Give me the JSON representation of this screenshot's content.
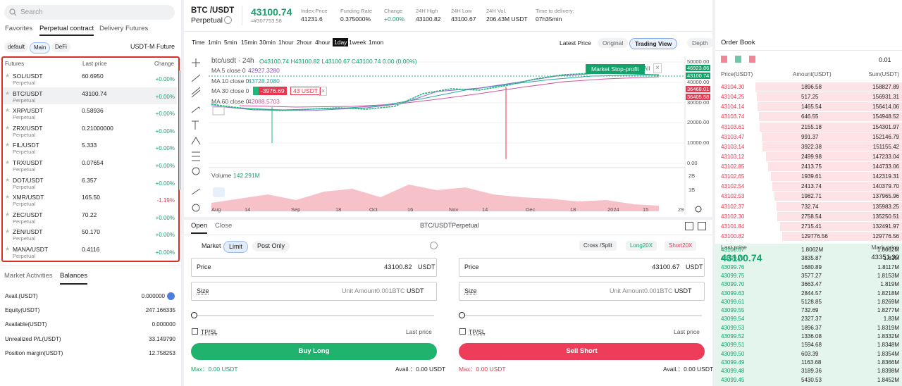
{
  "sidebar": {
    "search": "Search",
    "tabs": [
      "Favorites",
      "Perpetual contract",
      "Delivery Futures"
    ],
    "filters": [
      "default",
      "Main",
      "DeFi"
    ],
    "market": "USDT-M Future",
    "table": {
      "headers": [
        "Futures",
        "Last price",
        "Change"
      ],
      "rows": [
        {
          "symbol": "SOL/USDT",
          "type": "Perpetual",
          "price": "60.6950",
          "change": "+0.00%"
        },
        {
          "symbol": "BTC/USDT",
          "type": "Perpetual",
          "price": "43100.74",
          "change": "+0.00%"
        },
        {
          "symbol": "XRP/USDT",
          "type": "Perpetual",
          "price": "0.58936",
          "change": "+0.00%"
        },
        {
          "symbol": "ZRX/USDT",
          "type": "Perpetual",
          "price": "0.21000000",
          "change": "+0.00%"
        },
        {
          "symbol": "FIL/USDT",
          "type": "Perpetual",
          "price": "5.333",
          "change": "+0.00%"
        },
        {
          "symbol": "TRX/USDT",
          "type": "Perpetual",
          "price": "0.07654",
          "change": "+0.00%"
        },
        {
          "symbol": "DOT/USDT",
          "type": "Perpetual",
          "price": "6.357",
          "change": "+0.00%"
        },
        {
          "symbol": "XMR/USDT",
          "type": "Perpetual",
          "price": "165.50",
          "change": "-1.19%"
        },
        {
          "symbol": "ZEC/USDT",
          "type": "Perpetual",
          "price": "70.22",
          "change": "+0.00%"
        },
        {
          "symbol": "ZEN/USDT",
          "type": "Perpetual",
          "price": "50.170",
          "change": "+0.00%"
        },
        {
          "symbol": "MANA/USDT",
          "type": "Perpetual",
          "price": "0.4116",
          "change": "+0.00%"
        }
      ]
    },
    "bottom_tabs": [
      "Market Activities",
      "Balances"
    ],
    "balances": [
      [
        "Avail.(USDT)",
        "0.000000"
      ],
      [
        "Equity(USDT)",
        "247.166335"
      ],
      [
        "Available(USDT)",
        "0.000000"
      ],
      [
        "Unrealized P/L(USDT)",
        "33.149790"
      ],
      [
        "Position margin(USDT)",
        "12.758253"
      ]
    ]
  },
  "header": {
    "pair": "BTC /USDT",
    "contract": "Perpetual",
    "price": "43100.74",
    "cny": "≈¥307753.58",
    "stats": [
      {
        "label": "Index Price",
        "value": "41231.6"
      },
      {
        "label": "Funding Rate",
        "value": "0.375000%"
      },
      {
        "label": "Change",
        "value": "+0.00%"
      },
      {
        "label": "24H High",
        "value": "43100.82"
      },
      {
        "label": "24H Low",
        "value": "43100.67"
      },
      {
        "label": "24H Vol.",
        "value": "206.43M USDT"
      },
      {
        "label": "Time to delivery:",
        "value": "07h35min"
      }
    ]
  },
  "toolbar": {
    "intervals": [
      "Time",
      "1min",
      "5min",
      "15min",
      "30min",
      "1hour",
      "2hour",
      "4hour",
      "1day",
      "1week",
      "1mon"
    ],
    "price_type": "Latest Price",
    "views": [
      "Original",
      "Trading View",
      "Depth"
    ]
  },
  "chart": {
    "title": "btc/usdt · 24h",
    "ohlc": "O43100.74 H43100.82 L43100.67 C43100.74 0.00 (0.00%)",
    "ma": [
      {
        "label": "MA 5 close 0",
        "value": "42927.3280"
      },
      {
        "label": "MA 10 close 0",
        "value": "43728.2080"
      },
      {
        "label": "MA 30 close 0"
      },
      {
        "label": "MA 60 close 0",
        "value": "42088.5703"
      }
    ],
    "order_tag": [
      "-3976.69",
      "43 USDT"
    ],
    "stop_profit": "Market Stop-profit",
    "all": "All",
    "price_axis": [
      "50000.00",
      "46923.86",
      "43100.74",
      "40000.00",
      "36468.01",
      "36405.58",
      "30000.00",
      "20000.00",
      "10000.00",
      "0.00"
    ],
    "volume_axis": [
      "2B",
      "1B"
    ],
    "dates": [
      "Aug",
      "14",
      "Sep",
      "18",
      "Oct",
      "16",
      "Nov",
      "14",
      "Dec",
      "18",
      "2024",
      "15",
      "29"
    ],
    "volume_label": "Volume",
    "volume_value": "142.291M"
  },
  "order_form": {
    "tabs": [
      "Open",
      "Close"
    ],
    "pair": "BTC/USDTPerpetual",
    "types": [
      "Market",
      "Limit",
      "Post Only"
    ],
    "margin": [
      "Cross /Split",
      "Long20X",
      "Short20X"
    ],
    "sides": [
      {
        "price_label": "Price",
        "price": "43100.82",
        "unit": "USDT",
        "size_label": "Size",
        "size_placeholder": "Unit Amount0.001BTC",
        "size_unit": "USDT",
        "tpsl": "TP/SL",
        "trigger": "Last price",
        "button": "Buy Long",
        "max": "Max：0.00 USDT",
        "avail": "Avail.：0.00 USDT"
      },
      {
        "price_label": "Price",
        "price": "43100.67",
        "unit": "USDT",
        "size_label": "Size",
        "size_placeholder": "Unit Amount0.001BTC",
        "size_unit": "USDT",
        "tpsl": "TP/SL",
        "trigger": "Last price",
        "button": "Sell Short",
        "max": "Max：0.00 USDT",
        "avail": "Avail.：0.00 USDT"
      }
    ]
  },
  "order_book": {
    "title": "Order Book",
    "precision": "0.01",
    "headers": [
      "Price(USDT)",
      "Amount(USDT)",
      "Sum(USDT)"
    ],
    "asks": [
      [
        "43104.30",
        "1896.58",
        "158827.89"
      ],
      [
        "43104.25",
        "517.25",
        "156931.31"
      ],
      [
        "43104.14",
        "1465.54",
        "156414.06"
      ],
      [
        "43103.74",
        "646.55",
        "154948.52"
      ],
      [
        "43103.61",
        "2155.18",
        "154301.97"
      ],
      [
        "43103.47",
        "991.37",
        "152146.79"
      ],
      [
        "43103.14",
        "3922.38",
        "151155.42"
      ],
      [
        "43103.12",
        "2499.98",
        "147233.04"
      ],
      [
        "43102.85",
        "2413.75",
        "144733.06"
      ],
      [
        "43102.65",
        "1939.61",
        "142319.31"
      ],
      [
        "43102.54",
        "2413.74",
        "140379.70"
      ],
      [
        "43102.53",
        "1982.71",
        "137965.96"
      ],
      [
        "43102.37",
        "732.74",
        "135983.25"
      ],
      [
        "43102.30",
        "2758.54",
        "135250.51"
      ],
      [
        "43101.84",
        "2715.41",
        "132491.97"
      ],
      [
        "43100.82",
        "129776.56",
        "129776.56"
      ]
    ],
    "last_price_label": "Last price",
    "last_price": "43100.74",
    "mark_price_label": "Mark price",
    "mark_price": "43351.30",
    "bids": [
      [
        "43100.67",
        "1.8062M",
        "1.8062M"
      ],
      [
        "43099.77",
        "3835.87",
        "1.81M"
      ],
      [
        "43099.76",
        "1680.89",
        "1.8117M"
      ],
      [
        "43099.75",
        "3577.27",
        "1.8153M"
      ],
      [
        "43099.70",
        "3663.47",
        "1.819M"
      ],
      [
        "43099.63",
        "2844.57",
        "1.8218M"
      ],
      [
        "43099.61",
        "5128.85",
        "1.8269M"
      ],
      [
        "43099.55",
        "732.69",
        "1.8277M"
      ],
      [
        "43099.54",
        "2327.37",
        "1.83M"
      ],
      [
        "43099.53",
        "1896.37",
        "1.8319M"
      ],
      [
        "43099.52",
        "1336.08",
        "1.8332M"
      ],
      [
        "43099.51",
        "1594.68",
        "1.8348M"
      ],
      [
        "43099.50",
        "603.39",
        "1.8354M"
      ],
      [
        "43099.49",
        "1163.68",
        "1.8366M"
      ],
      [
        "43099.48",
        "3189.36",
        "1.8398M"
      ],
      [
        "43099.45",
        "5430.53",
        "1.8452M"
      ]
    ]
  }
}
